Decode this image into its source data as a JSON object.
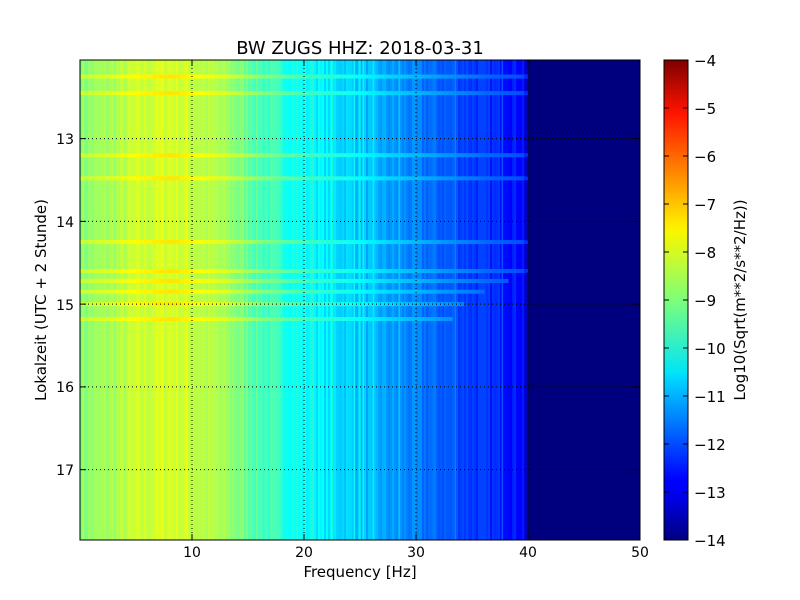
{
  "chart_data": {
    "type": "heatmap",
    "title": "BW ZUGS HHZ: 2018-03-31",
    "xlabel": "Frequency [Hz]",
    "ylabel": "Lokalzeit (UTC + 2 Stunde)",
    "xlim": [
      0,
      50
    ],
    "ylim": [
      12.05,
      17.85
    ],
    "y_inverted": true,
    "xticks": [
      10,
      20,
      30,
      40,
      50
    ],
    "yticks": [
      13,
      14,
      15,
      16,
      17
    ],
    "grid": true,
    "grid_style": "dotted",
    "colormap": "jet",
    "colorbar": {
      "label": "Log10(Sqrt(m**2/s**2/Hz))",
      "range": [
        -14,
        -4
      ],
      "ticks": [
        -4,
        -5,
        -6,
        -7,
        -8,
        -9,
        -10,
        -11,
        -12,
        -13,
        -14
      ]
    },
    "level_profile": {
      "description": "approximate log10 amplitude vs frequency (data units)",
      "frequency_hz": [
        0,
        3,
        5,
        8,
        10,
        13,
        16,
        20,
        24,
        28,
        32,
        36,
        39.5,
        40,
        50
      ],
      "log10_amplitude": [
        -8.9,
        -8.6,
        -8.3,
        -8.1,
        -8.3,
        -8.7,
        -9.5,
        -10.2,
        -10.7,
        -11.3,
        -11.8,
        -12.3,
        -12.6,
        -13.8,
        -13.8
      ]
    },
    "spectral_lines_hz": [
      20.8,
      22.5,
      24.5,
      25.0,
      25.3,
      26.2,
      28.5,
      33.5,
      37.7
    ],
    "bands": [
      {
        "time": 12.25,
        "fmax": 41
      },
      {
        "time": 12.45,
        "fmax": 42
      },
      {
        "time": 13.2,
        "fmax": 41
      },
      {
        "time": 13.48,
        "fmax": 42
      },
      {
        "time": 14.25,
        "fmax": 41
      },
      {
        "time": 14.6,
        "fmax": 42
      },
      {
        "time": 14.72,
        "fmax": 38
      },
      {
        "time": 14.85,
        "fmax": 36
      },
      {
        "time": 15.0,
        "fmax": 34
      },
      {
        "time": 15.18,
        "fmax": 33
      }
    ]
  },
  "axis_labels": {
    "xticks": [
      "10",
      "20",
      "30",
      "40",
      "50"
    ],
    "yticks": [
      "13",
      "14",
      "15",
      "16",
      "17"
    ],
    "cbticks": [
      "−4",
      "−5",
      "−6",
      "−7",
      "−8",
      "−9",
      "−10",
      "−11",
      "−12",
      "−13",
      "−14"
    ]
  },
  "colors": {
    "frame": "#000000",
    "grid": "#000000",
    "noise_floor": "#00007f"
  }
}
